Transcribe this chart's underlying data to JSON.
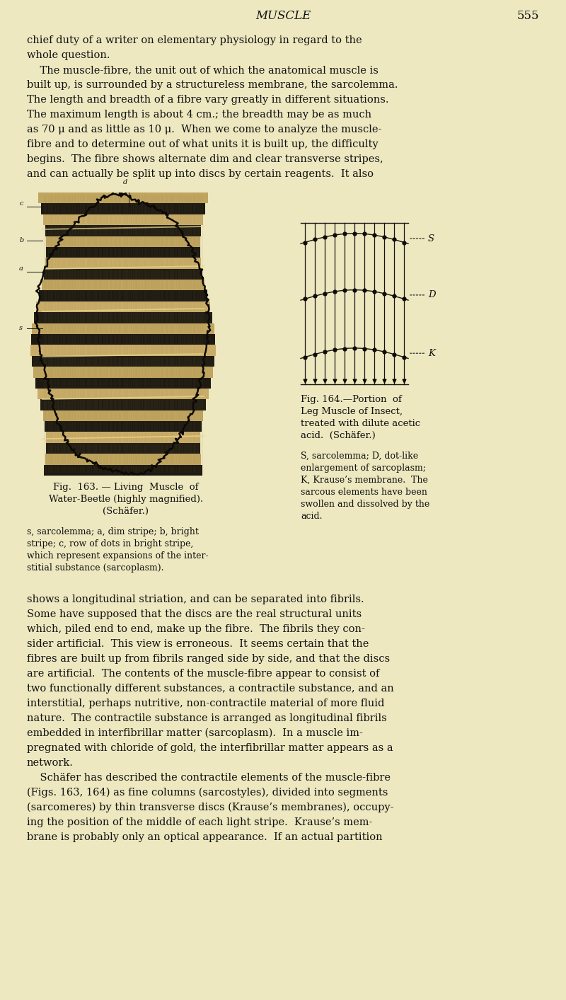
{
  "background_color": "#ede8c0",
  "page_title": "MUSCLE",
  "page_number": "555",
  "title_fontsize": 12,
  "body_fontsize": 10.5,
  "small_fontsize": 9.5,
  "caption_fontsize": 9.5,
  "text_color": "#111111",
  "top_text": [
    "chief duty of a writer on elementary physiology in regard to the",
    "whole question.",
    "    The muscle-fibre, the unit out of which the anatomical muscle is",
    "built up, is surrounded by a structureless membrane, the sarcolemma.",
    "The length and breadth of a fibre vary greatly in different situations.",
    "The maximum length is about 4 cm.; the breadth may be as much",
    "as 70 μ and as little as 10 μ.  When we come to analyze the muscle-",
    "fibre and to determine out of what units it is built up, the difficulty",
    "begins.  The fibre shows alternate dim and clear transverse stripes,",
    "and can actually be split up into discs by certain reagents.  It also"
  ],
  "fig163_caption": [
    "Fig.  163. — Living  Muscle  of",
    "Water-Beetle (highly magnified).",
    "(Schäfer.)"
  ],
  "fig163_legend": [
    "s, sarcolemma; a, dim stripe; b, bright",
    "stripe; c, row of dots in bright stripe,",
    "which represent expansions of the inter-",
    "stitial substance (sarcoplasm)."
  ],
  "fig164_caption": [
    "Fig. 164.—Portion  of",
    "Leg Muscle of Insect,",
    "treated with dilute acetic",
    "acid.  (Schäfer.)"
  ],
  "fig164_legend": [
    "S, sarcolemma; D, dot-like",
    "enlargement of sarcoplasm;",
    "K, Krause’s membrane.  The",
    "sarcous elements have been",
    "swollen and dissolved by the",
    "acid."
  ],
  "bottom_text": [
    "shows a longitudinal striation, and can be separated into fibrils.",
    "Some have supposed that the discs are the real structural units",
    "which, piled end to end, make up the fibre.  The fibrils they con-",
    "sider artificial.  This view is erroneous.  It seems certain that the",
    "fibres are built up from fibrils ranged side by side, and that the discs",
    "are artificial.  The contents of the muscle-fibre appear to consist of",
    "two functionally different substances, a contractile substance, and an",
    "interstitial, perhaps nutritive, non-contractile material of more fluid",
    "nature.  The contractile substance is arranged as longitudinal fibrils",
    "embedded in interfibrillar matter (sarcoplasm).  In a muscle im-",
    "pregnated with chloride of gold, the interfibrillar matter appears as a",
    "network.",
    "    Schäfer has described the contractile elements of the muscle-fibre",
    "(Figs. 163, 164) as fine columns (sarcostyles), divided into segments",
    "(sarcomeres) by thin transverse discs (Krause’s membranes), occupy-",
    "ing the position of the middle of each light stripe.  Krause’s mem-",
    "brane is probably only an optical appearance.  If an actual partition"
  ]
}
